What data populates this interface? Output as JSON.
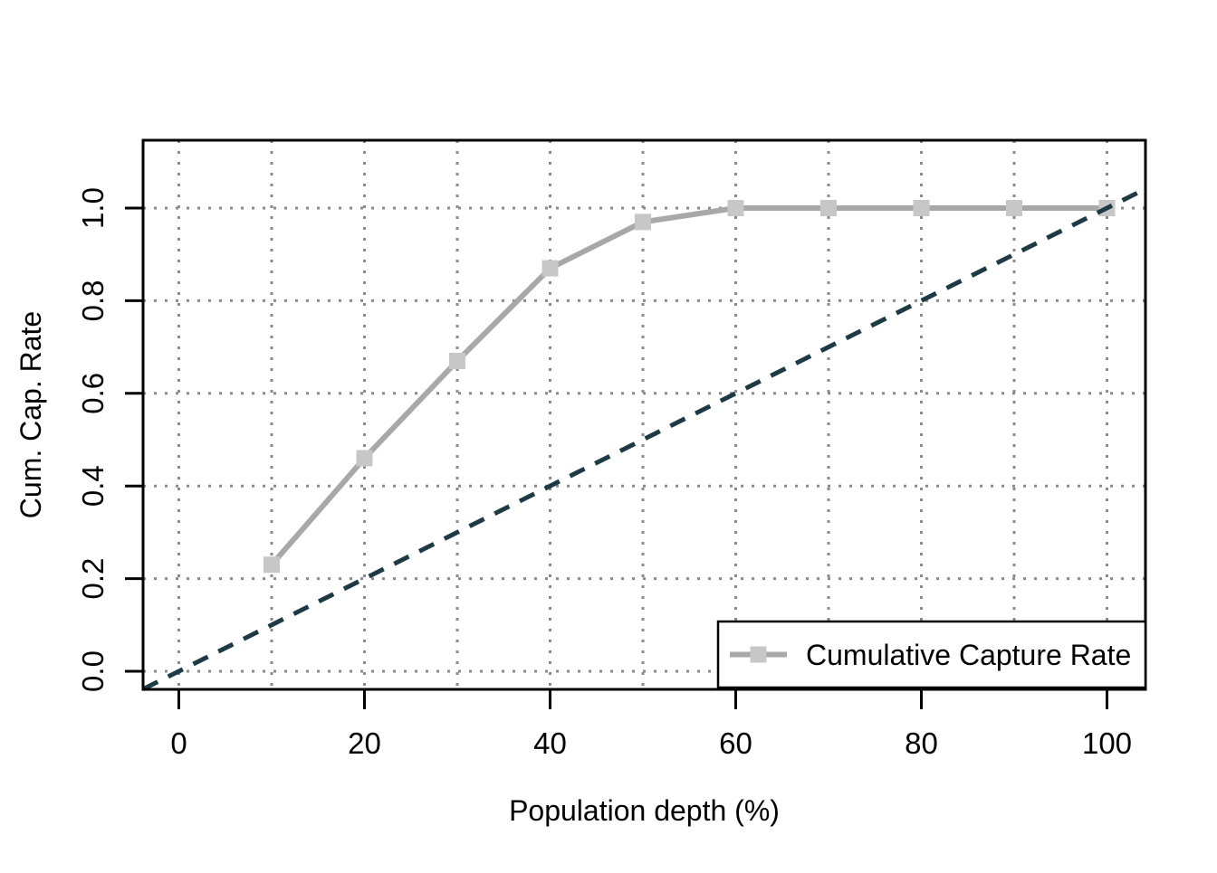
{
  "chart_data": {
    "type": "line",
    "title": "",
    "xlabel": "Population depth (%)",
    "ylabel": "Cum. Cap. Rate",
    "x": [
      10,
      20,
      30,
      40,
      50,
      60,
      70,
      80,
      90,
      100
    ],
    "series": [
      {
        "name": "Cumulative Capture Rate",
        "values": [
          0.23,
          0.46,
          0.67,
          0.87,
          0.97,
          1.0,
          1.0,
          1.0,
          1.0,
          1.0
        ],
        "color": "#a8a8a8",
        "marker": "square",
        "marker_fill": "#c7c7c7",
        "line_width": 6,
        "marker_size": 18
      }
    ],
    "baseline": {
      "name": "random-model-diagonal",
      "slope": 0.01,
      "intercept": 0,
      "style": "dashed",
      "color": "#1e3a45",
      "line_width": 5
    },
    "x_ticks": [
      "0",
      "20",
      "40",
      "60",
      "80",
      "100"
    ],
    "y_ticks": [
      "0.0",
      "0.2",
      "0.4",
      "0.6",
      "0.8",
      "1.0"
    ],
    "x_grid_values": [
      0,
      10,
      20,
      30,
      40,
      50,
      60,
      70,
      80,
      90,
      100
    ],
    "y_grid_values": [
      0,
      0.2,
      0.4,
      0.6,
      0.8,
      1.0
    ],
    "xlim": [
      -4,
      104
    ],
    "ylim": [
      -0.04,
      1.15
    ],
    "grid": true,
    "grid_color": "#8a8a8a",
    "axis_color": "#000000",
    "background": "#ffffff",
    "legend": {
      "position": "bottom-right",
      "entries": [
        {
          "label": "Cumulative Capture Rate",
          "color": "#a8a8a8",
          "marker": "square",
          "marker_fill": "#c7c7c7"
        }
      ]
    }
  }
}
